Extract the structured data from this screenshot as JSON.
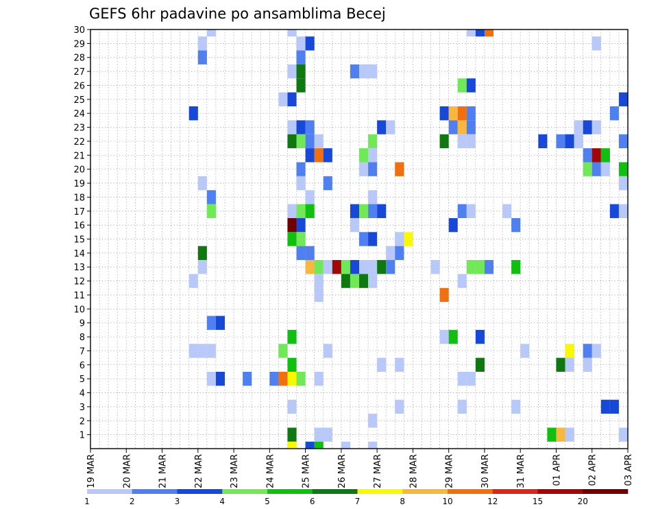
{
  "chart_data": {
    "type": "heatmap",
    "title": "GEFS 6hr padavine po ansamblima Becej",
    "xlabel": "",
    "ylabel": "",
    "x_tick_labels": [
      "19 MAR",
      "20 MAR",
      "21 MAR",
      "22 MAR",
      "23 MAR",
      "24 MAR",
      "25 MAR",
      "26 MAR",
      "27 MAR",
      "28 MAR",
      "29 MAR",
      "30 MAR",
      "31 MAR",
      "01 APR",
      "02 APR",
      "03 APR"
    ],
    "y_tick_labels": [
      "1",
      "2",
      "3",
      "4",
      "5",
      "6",
      "7",
      "8",
      "9",
      "10",
      "11",
      "12",
      "13",
      "14",
      "15",
      "16",
      "17",
      "18",
      "19",
      "20",
      "21",
      "22",
      "23",
      "24",
      "25",
      "26",
      "27",
      "28",
      "29",
      "30"
    ],
    "xlim": [
      0,
      60
    ],
    "ylim": [
      0,
      30
    ],
    "x_unit_note": "",
    "grid": true,
    "colorbar": {
      "labels": [
        "1",
        "2",
        "3",
        "4",
        "5",
        "6",
        "7",
        "8",
        "10",
        "12",
        "15",
        "20"
      ],
      "colors": [
        "#b8c8f8",
        "#5080f0",
        "#1848d8",
        "#70e858",
        "#10c010",
        "#107810",
        "#f8f800",
        "#f8b840",
        "#f07010",
        "#d82818",
        "#a00808",
        "#700000"
      ]
    },
    "cells": [
      {
        "x": 13,
        "y": 30,
        "v": 1
      },
      {
        "x": 22,
        "y": 30,
        "v": 1
      },
      {
        "x": 42,
        "y": 30,
        "v": 1
      },
      {
        "x": 43,
        "y": 30,
        "v": 3
      },
      {
        "x": 44,
        "y": 30,
        "v": 10
      },
      {
        "x": 12,
        "y": 29,
        "v": 1
      },
      {
        "x": 23,
        "y": 29,
        "v": 1
      },
      {
        "x": 24,
        "y": 29,
        "v": 3
      },
      {
        "x": 56,
        "y": 29,
        "v": 1
      },
      {
        "x": 12,
        "y": 28,
        "v": 2
      },
      {
        "x": 23,
        "y": 28,
        "v": 2
      },
      {
        "x": 22,
        "y": 27,
        "v": 1
      },
      {
        "x": 23,
        "y": 27,
        "v": 6
      },
      {
        "x": 29,
        "y": 27,
        "v": 2
      },
      {
        "x": 30,
        "y": 27,
        "v": 1
      },
      {
        "x": 31,
        "y": 27,
        "v": 1
      },
      {
        "x": 23,
        "y": 26,
        "v": 6
      },
      {
        "x": 41,
        "y": 26,
        "v": 4
      },
      {
        "x": 42,
        "y": 26,
        "v": 3
      },
      {
        "x": 21,
        "y": 25,
        "v": 1
      },
      {
        "x": 22,
        "y": 25,
        "v": 3
      },
      {
        "x": 59,
        "y": 25,
        "v": 3
      },
      {
        "x": 11,
        "y": 24,
        "v": 3
      },
      {
        "x": 39,
        "y": 24,
        "v": 3
      },
      {
        "x": 40,
        "y": 24,
        "v": 8
      },
      {
        "x": 41,
        "y": 24,
        "v": 10
      },
      {
        "x": 42,
        "y": 24,
        "v": 2
      },
      {
        "x": 58,
        "y": 24,
        "v": 2
      },
      {
        "x": 22,
        "y": 23,
        "v": 1
      },
      {
        "x": 23,
        "y": 23,
        "v": 3
      },
      {
        "x": 24,
        "y": 23,
        "v": 2
      },
      {
        "x": 32,
        "y": 23,
        "v": 3
      },
      {
        "x": 33,
        "y": 23,
        "v": 1
      },
      {
        "x": 40,
        "y": 23,
        "v": 2
      },
      {
        "x": 41,
        "y": 23,
        "v": 8
      },
      {
        "x": 42,
        "y": 23,
        "v": 2
      },
      {
        "x": 54,
        "y": 23,
        "v": 1
      },
      {
        "x": 55,
        "y": 23,
        "v": 3
      },
      {
        "x": 56,
        "y": 23,
        "v": 1
      },
      {
        "x": 22,
        "y": 22,
        "v": 6
      },
      {
        "x": 23,
        "y": 22,
        "v": 4
      },
      {
        "x": 24,
        "y": 22,
        "v": 2
      },
      {
        "x": 25,
        "y": 22,
        "v": 1
      },
      {
        "x": 31,
        "y": 22,
        "v": 4
      },
      {
        "x": 39,
        "y": 22,
        "v": 6
      },
      {
        "x": 41,
        "y": 22,
        "v": 1
      },
      {
        "x": 42,
        "y": 22,
        "v": 1
      },
      {
        "x": 50,
        "y": 22,
        "v": 3
      },
      {
        "x": 52,
        "y": 22,
        "v": 2
      },
      {
        "x": 53,
        "y": 22,
        "v": 3
      },
      {
        "x": 54,
        "y": 22,
        "v": 1
      },
      {
        "x": 59,
        "y": 22,
        "v": 2
      },
      {
        "x": 60,
        "y": 22,
        "v": 3
      },
      {
        "x": 24,
        "y": 21,
        "v": 3
      },
      {
        "x": 25,
        "y": 21,
        "v": 10
      },
      {
        "x": 26,
        "y": 21,
        "v": 3
      },
      {
        "x": 30,
        "y": 21,
        "v": 4
      },
      {
        "x": 31,
        "y": 21,
        "v": 1
      },
      {
        "x": 55,
        "y": 21,
        "v": 2
      },
      {
        "x": 56,
        "y": 21,
        "v": 15
      },
      {
        "x": 57,
        "y": 21,
        "v": 5
      },
      {
        "x": 23,
        "y": 20,
        "v": 2
      },
      {
        "x": 30,
        "y": 20,
        "v": 1
      },
      {
        "x": 31,
        "y": 20,
        "v": 2
      },
      {
        "x": 34,
        "y": 20,
        "v": 10
      },
      {
        "x": 55,
        "y": 20,
        "v": 4
      },
      {
        "x": 56,
        "y": 20,
        "v": 2
      },
      {
        "x": 57,
        "y": 20,
        "v": 1
      },
      {
        "x": 59,
        "y": 20,
        "v": 5
      },
      {
        "x": 23,
        "y": 19,
        "v": 1
      },
      {
        "x": 12,
        "y": 19,
        "v": 1
      },
      {
        "x": 26,
        "y": 19,
        "v": 2
      },
      {
        "x": 59,
        "y": 19,
        "v": 1
      },
      {
        "x": 60,
        "y": 19,
        "v": 4
      },
      {
        "x": 13,
        "y": 18,
        "v": 2
      },
      {
        "x": 24,
        "y": 18,
        "v": 1
      },
      {
        "x": 31,
        "y": 18,
        "v": 1
      },
      {
        "x": 13,
        "y": 17,
        "v": 4
      },
      {
        "x": 22,
        "y": 17,
        "v": 1
      },
      {
        "x": 23,
        "y": 17,
        "v": 4
      },
      {
        "x": 24,
        "y": 17,
        "v": 5
      },
      {
        "x": 29,
        "y": 17,
        "v": 3
      },
      {
        "x": 30,
        "y": 17,
        "v": 4
      },
      {
        "x": 31,
        "y": 17,
        "v": 2
      },
      {
        "x": 32,
        "y": 17,
        "v": 3
      },
      {
        "x": 41,
        "y": 17,
        "v": 2
      },
      {
        "x": 42,
        "y": 17,
        "v": 1
      },
      {
        "x": 46,
        "y": 17,
        "v": 1
      },
      {
        "x": 58,
        "y": 17,
        "v": 3
      },
      {
        "x": 59,
        "y": 17,
        "v": 1
      },
      {
        "x": 60,
        "y": 17,
        "v": 1
      },
      {
        "x": 22,
        "y": 16,
        "v": 20
      },
      {
        "x": 23,
        "y": 16,
        "v": 3
      },
      {
        "x": 29,
        "y": 16,
        "v": 1
      },
      {
        "x": 40,
        "y": 16,
        "v": 3
      },
      {
        "x": 47,
        "y": 16,
        "v": 2
      },
      {
        "x": 22,
        "y": 15,
        "v": 5
      },
      {
        "x": 23,
        "y": 15,
        "v": 4
      },
      {
        "x": 30,
        "y": 15,
        "v": 2
      },
      {
        "x": 31,
        "y": 15,
        "v": 3
      },
      {
        "x": 34,
        "y": 15,
        "v": 1
      },
      {
        "x": 35,
        "y": 15,
        "v": 7
      },
      {
        "x": 12,
        "y": 14,
        "v": 6
      },
      {
        "x": 23,
        "y": 14,
        "v": 2
      },
      {
        "x": 24,
        "y": 14,
        "v": 2
      },
      {
        "x": 33,
        "y": 14,
        "v": 1
      },
      {
        "x": 34,
        "y": 14,
        "v": 2
      },
      {
        "x": 12,
        "y": 13,
        "v": 1
      },
      {
        "x": 24,
        "y": 13,
        "v": 8
      },
      {
        "x": 25,
        "y": 13,
        "v": 4
      },
      {
        "x": 26,
        "y": 13,
        "v": 1
      },
      {
        "x": 27,
        "y": 13,
        "v": 15
      },
      {
        "x": 28,
        "y": 13,
        "v": 4
      },
      {
        "x": 29,
        "y": 13,
        "v": 3
      },
      {
        "x": 30,
        "y": 13,
        "v": 1
      },
      {
        "x": 31,
        "y": 13,
        "v": 1
      },
      {
        "x": 32,
        "y": 13,
        "v": 6
      },
      {
        "x": 33,
        "y": 13,
        "v": 2
      },
      {
        "x": 38,
        "y": 13,
        "v": 1
      },
      {
        "x": 42,
        "y": 13,
        "v": 4
      },
      {
        "x": 43,
        "y": 13,
        "v": 4
      },
      {
        "x": 44,
        "y": 13,
        "v": 2
      },
      {
        "x": 47,
        "y": 13,
        "v": 5
      },
      {
        "x": 11,
        "y": 12,
        "v": 1
      },
      {
        "x": 25,
        "y": 12,
        "v": 1
      },
      {
        "x": 28,
        "y": 12,
        "v": 6
      },
      {
        "x": 29,
        "y": 12,
        "v": 4
      },
      {
        "x": 30,
        "y": 12,
        "v": 6
      },
      {
        "x": 31,
        "y": 12,
        "v": 1
      },
      {
        "x": 41,
        "y": 12,
        "v": 1
      },
      {
        "x": 25,
        "y": 11,
        "v": 1
      },
      {
        "x": 39,
        "y": 11,
        "v": 10
      },
      {
        "x": 13,
        "y": 9,
        "v": 2
      },
      {
        "x": 14,
        "y": 9,
        "v": 3
      },
      {
        "x": 22,
        "y": 8,
        "v": 5
      },
      {
        "x": 39,
        "y": 8,
        "v": 1
      },
      {
        "x": 40,
        "y": 8,
        "v": 5
      },
      {
        "x": 43,
        "y": 8,
        "v": 3
      },
      {
        "x": 60,
        "y": 8,
        "v": 1
      },
      {
        "x": 11,
        "y": 7,
        "v": 1
      },
      {
        "x": 12,
        "y": 7,
        "v": 1
      },
      {
        "x": 13,
        "y": 7,
        "v": 1
      },
      {
        "x": 21,
        "y": 7,
        "v": 4
      },
      {
        "x": 26,
        "y": 7,
        "v": 1
      },
      {
        "x": 48,
        "y": 7,
        "v": 1
      },
      {
        "x": 53,
        "y": 7,
        "v": 7
      },
      {
        "x": 55,
        "y": 7,
        "v": 2
      },
      {
        "x": 56,
        "y": 7,
        "v": 1
      },
      {
        "x": 22,
        "y": 6,
        "v": 5
      },
      {
        "x": 32,
        "y": 6,
        "v": 1
      },
      {
        "x": 34,
        "y": 6,
        "v": 1
      },
      {
        "x": 43,
        "y": 6,
        "v": 6
      },
      {
        "x": 52,
        "y": 6,
        "v": 6
      },
      {
        "x": 53,
        "y": 6,
        "v": 1
      },
      {
        "x": 55,
        "y": 6,
        "v": 1
      },
      {
        "x": 13,
        "y": 5,
        "v": 1
      },
      {
        "x": 14,
        "y": 5,
        "v": 3
      },
      {
        "x": 17,
        "y": 5,
        "v": 2
      },
      {
        "x": 20,
        "y": 5,
        "v": 2
      },
      {
        "x": 21,
        "y": 5,
        "v": 10
      },
      {
        "x": 22,
        "y": 5,
        "v": 7
      },
      {
        "x": 23,
        "y": 5,
        "v": 4
      },
      {
        "x": 25,
        "y": 5,
        "v": 1
      },
      {
        "x": 41,
        "y": 5,
        "v": 1
      },
      {
        "x": 42,
        "y": 5,
        "v": 1
      },
      {
        "x": 22,
        "y": 3,
        "v": 1
      },
      {
        "x": 34,
        "y": 3,
        "v": 1
      },
      {
        "x": 41,
        "y": 3,
        "v": 1
      },
      {
        "x": 47,
        "y": 3,
        "v": 1
      },
      {
        "x": 57,
        "y": 3,
        "v": 3
      },
      {
        "x": 58,
        "y": 3,
        "v": 3
      },
      {
        "x": 31,
        "y": 2,
        "v": 1
      },
      {
        "x": 22,
        "y": 1,
        "v": 6
      },
      {
        "x": 25,
        "y": 1,
        "v": 1
      },
      {
        "x": 26,
        "y": 1,
        "v": 1
      },
      {
        "x": 51,
        "y": 1,
        "v": 5
      },
      {
        "x": 52,
        "y": 1,
        "v": 8
      },
      {
        "x": 53,
        "y": 1,
        "v": 1
      },
      {
        "x": 59,
        "y": 1,
        "v": 1
      },
      {
        "x": 60,
        "y": 1,
        "v": 3
      },
      {
        "x": 22,
        "y": 0,
        "v": 7
      },
      {
        "x": 24,
        "y": 0,
        "v": 3
      },
      {
        "x": 25,
        "y": 0,
        "v": 5
      },
      {
        "x": 28,
        "y": 0,
        "v": 1
      },
      {
        "x": 31,
        "y": 0,
        "v": 1
      }
    ]
  }
}
